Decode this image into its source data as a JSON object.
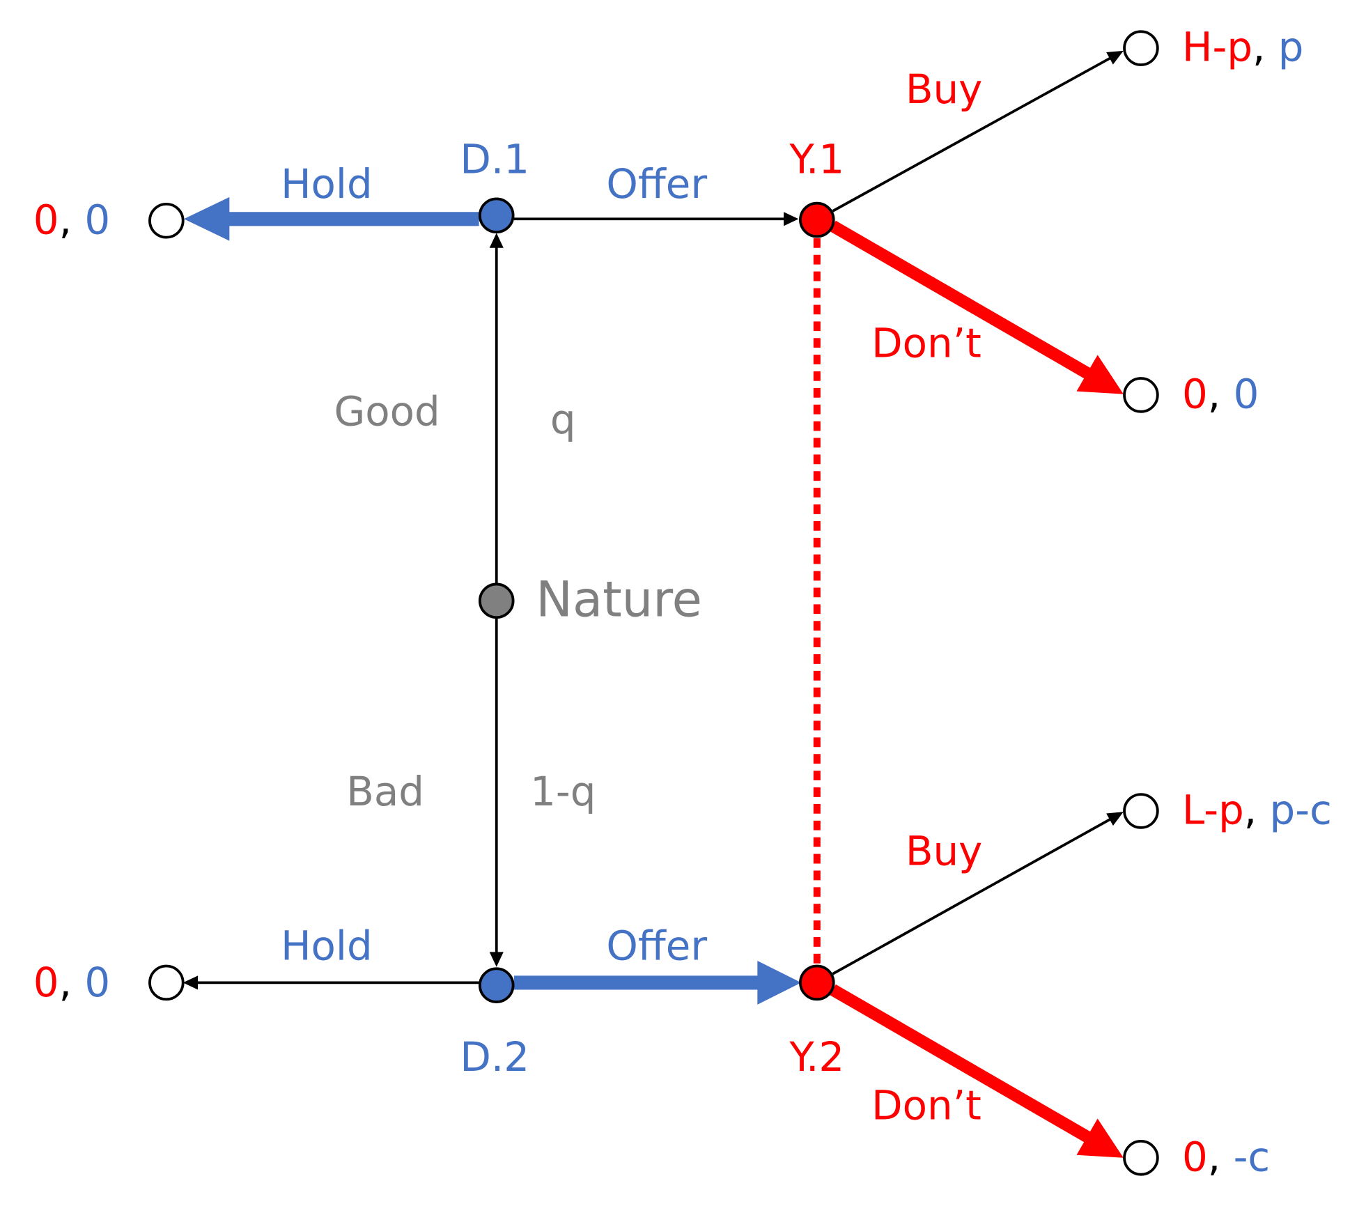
{
  "nodes": [
    {
      "label": "D.1"
    },
    {
      "label": "Y.1"
    },
    {
      "label": "Nature"
    },
    {
      "label": "D.2"
    },
    {
      "label": "Y.2"
    }
  ],
  "edges": [
    {
      "label": "Hold"
    },
    {
      "label": "Offer"
    },
    {
      "label": "Buy"
    },
    {
      "label": "Don’t"
    },
    {
      "label": "Good",
      "probability": "q"
    },
    {
      "label": "Bad",
      "probability": "1-q"
    },
    {
      "label": "Hold"
    },
    {
      "label": "Offer"
    },
    {
      "label": "Buy"
    },
    {
      "label": "Don’t"
    }
  ],
  "payoffs": [
    {
      "first": "0",
      "sep": ", ",
      "second": "0"
    },
    {
      "first": "H-p",
      "sep": ", ",
      "second": "p"
    },
    {
      "first": "0",
      "sep": ", ",
      "second": "0"
    },
    {
      "first": "0",
      "sep": ", ",
      "second": "0"
    },
    {
      "first": "L-p",
      "sep": ", ",
      "second": "p-c"
    },
    {
      "first": "0",
      "sep": ", ",
      "second": "-c"
    }
  ]
}
